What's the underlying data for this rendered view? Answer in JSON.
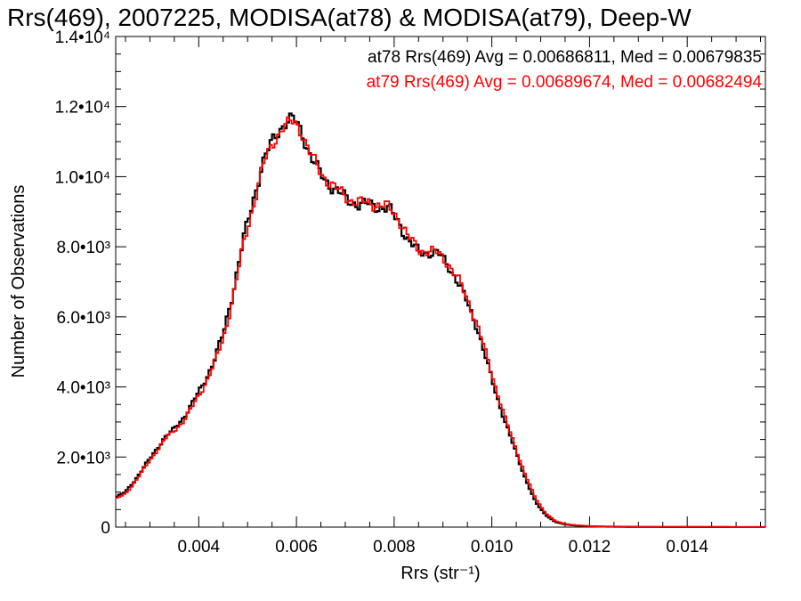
{
  "chart_data": {
    "type": "line",
    "title": "Rrs(469), 2007225, MODISA(at78) & MODISA(at79), Deep-W",
    "xlabel": "Rrs (str⁻¹)",
    "ylabel": "Number of Observations",
    "xlim": [
      0.0023,
      0.0156
    ],
    "ylim": [
      0,
      14000
    ],
    "grid": false,
    "x_ticks": [
      {
        "value": 0.004,
        "label": "0.004"
      },
      {
        "value": 0.006,
        "label": "0.006"
      },
      {
        "value": 0.008,
        "label": "0.008"
      },
      {
        "value": 0.01,
        "label": "0.010"
      },
      {
        "value": 0.012,
        "label": "0.012"
      },
      {
        "value": 0.014,
        "label": "0.014"
      }
    ],
    "y_ticks": [
      {
        "value": 0,
        "label": "0"
      },
      {
        "value": 2000,
        "label": "2.0•10³"
      },
      {
        "value": 4000,
        "label": "4.0•10³"
      },
      {
        "value": 6000,
        "label": "6.0•10³"
      },
      {
        "value": 8000,
        "label": "8.0•10³"
      },
      {
        "value": 10000,
        "label": "1.0•10⁴"
      },
      {
        "value": 12000,
        "label": "1.2•10⁴"
      },
      {
        "value": 14000,
        "label": "1.4•10⁴"
      }
    ],
    "legend_placement": "top-right",
    "series": [
      {
        "color": "#000000",
        "label": "at78 Rrs(469) Avg = 0.00686811, Med = 0.00679835",
        "x": [
          0.0023,
          0.0025,
          0.0027,
          0.0029,
          0.0031,
          0.0033,
          0.0035,
          0.0037,
          0.0039,
          0.0041,
          0.0043,
          0.0045,
          0.0047,
          0.0049,
          0.0051,
          0.0053,
          0.0055,
          0.0057,
          0.0059,
          0.006,
          0.0061,
          0.0063,
          0.0065,
          0.0067,
          0.0069,
          0.0071,
          0.0073,
          0.0075,
          0.0077,
          0.0079,
          0.0081,
          0.0083,
          0.0085,
          0.0087,
          0.0089,
          0.0091,
          0.0093,
          0.0095,
          0.0097,
          0.0099,
          0.0101,
          0.0103,
          0.0105,
          0.0107,
          0.0109,
          0.0111,
          0.0113,
          0.0115,
          0.0117,
          0.0119,
          0.0121,
          0.0123,
          0.0125,
          0.013,
          0.014,
          0.015,
          0.0156
        ],
        "y": [
          850,
          1000,
          1350,
          1750,
          2150,
          2550,
          2800,
          3150,
          3600,
          4100,
          4700,
          5500,
          6700,
          8100,
          9250,
          10350,
          11000,
          11450,
          11650,
          11550,
          11300,
          10550,
          10050,
          9750,
          9500,
          9300,
          9200,
          9200,
          9150,
          9050,
          8700,
          8150,
          7850,
          7850,
          7800,
          7500,
          7000,
          6400,
          5700,
          4700,
          3750,
          2900,
          2100,
          1350,
          700,
          350,
          150,
          80,
          50,
          30,
          20,
          15,
          10,
          5,
          3,
          2,
          2
        ]
      },
      {
        "color": "#ff0000",
        "label": "at79 Rrs(469) Avg = 0.00689674, Med = 0.00682494",
        "x": [
          0.0023,
          0.0025,
          0.0027,
          0.0029,
          0.0031,
          0.0033,
          0.0035,
          0.0037,
          0.0039,
          0.0041,
          0.0043,
          0.0045,
          0.0047,
          0.0049,
          0.0051,
          0.0053,
          0.0055,
          0.0057,
          0.0059,
          0.006,
          0.0061,
          0.0063,
          0.0065,
          0.0067,
          0.0069,
          0.0071,
          0.0073,
          0.0075,
          0.0077,
          0.0079,
          0.0081,
          0.0083,
          0.0085,
          0.0087,
          0.0089,
          0.0091,
          0.0093,
          0.0095,
          0.0097,
          0.0099,
          0.0101,
          0.0103,
          0.0105,
          0.0107,
          0.0109,
          0.0111,
          0.0113,
          0.0115,
          0.0117,
          0.0119,
          0.0121,
          0.0123,
          0.0125,
          0.013,
          0.014,
          0.015,
          0.0156
        ],
        "y": [
          800,
          950,
          1300,
          1700,
          2100,
          2500,
          2750,
          3050,
          3500,
          4000,
          4600,
          5350,
          6550,
          7950,
          9100,
          10250,
          10900,
          11400,
          11550,
          11500,
          11300,
          10600,
          10100,
          9800,
          9550,
          9350,
          9250,
          9250,
          9200,
          9100,
          8800,
          8250,
          7900,
          7900,
          7800,
          7550,
          7100,
          6500,
          5800,
          4850,
          3900,
          3000,
          2200,
          1450,
          800,
          400,
          170,
          90,
          55,
          35,
          22,
          15,
          10,
          5,
          3,
          2,
          2
        ]
      }
    ]
  }
}
